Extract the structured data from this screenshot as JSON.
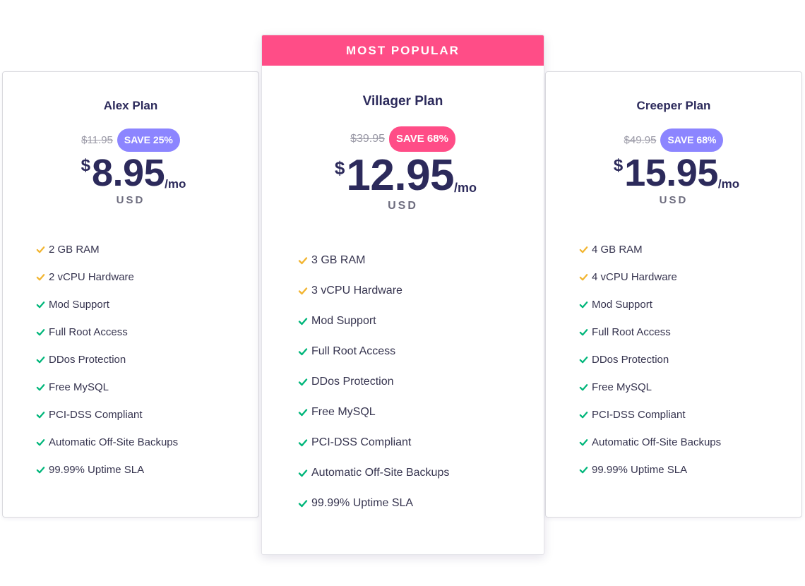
{
  "colors": {
    "ribbon": "#ff4d87",
    "save_purple": "#8c85ff",
    "save_pink": "#ff4d87",
    "check_gold": "#f2b531",
    "check_green": "#00b67a",
    "heading": "#2c2a5b"
  },
  "featured_ribbon": "MOST POPULAR",
  "plans": [
    {
      "name": "Alex Plan",
      "old_price": "$11.95",
      "save": "SAVE 25%",
      "currency_symbol": "$",
      "amount": "8.95",
      "per": "/mo",
      "currency": "USD",
      "features": [
        {
          "text": "2 GB RAM",
          "icon": "check-gold-icon"
        },
        {
          "text": "2 vCPU Hardware",
          "icon": "check-gold-icon"
        },
        {
          "text": "Mod Support",
          "icon": "check-green-icon"
        },
        {
          "text": "Full Root Access",
          "icon": "check-green-icon"
        },
        {
          "text": "DDos Protection",
          "icon": "check-green-icon"
        },
        {
          "text": "Free MySQL",
          "icon": "check-green-icon"
        },
        {
          "text": "PCI-DSS Compliant",
          "icon": "check-green-icon"
        },
        {
          "text": "Automatic Off-Site Backups",
          "icon": "check-green-icon"
        },
        {
          "text": "99.99% Uptime SLA",
          "icon": "check-green-icon"
        }
      ]
    },
    {
      "name": "Villager Plan",
      "old_price": "$39.95",
      "save": "SAVE 68%",
      "currency_symbol": "$",
      "amount": "12.95",
      "per": "/mo",
      "currency": "USD",
      "features": [
        {
          "text": "3 GB RAM",
          "icon": "check-gold-icon"
        },
        {
          "text": "3 vCPU Hardware",
          "icon": "check-gold-icon"
        },
        {
          "text": "Mod Support",
          "icon": "check-green-icon"
        },
        {
          "text": "Full Root Access",
          "icon": "check-green-icon"
        },
        {
          "text": "DDos Protection",
          "icon": "check-green-icon"
        },
        {
          "text": "Free MySQL",
          "icon": "check-green-icon"
        },
        {
          "text": "PCI-DSS Compliant",
          "icon": "check-green-icon"
        },
        {
          "text": "Automatic Off-Site Backups",
          "icon": "check-green-icon"
        },
        {
          "text": "99.99% Uptime SLA",
          "icon": "check-green-icon"
        }
      ]
    },
    {
      "name": "Creeper Plan",
      "old_price": "$49.95",
      "save": "SAVE 68%",
      "currency_symbol": "$",
      "amount": "15.95",
      "per": "/mo",
      "currency": "USD",
      "features": [
        {
          "text": "4 GB RAM",
          "icon": "check-gold-icon"
        },
        {
          "text": "4 vCPU Hardware",
          "icon": "check-gold-icon"
        },
        {
          "text": "Mod Support",
          "icon": "check-green-icon"
        },
        {
          "text": "Full Root Access",
          "icon": "check-green-icon"
        },
        {
          "text": "DDos Protection",
          "icon": "check-green-icon"
        },
        {
          "text": "Free MySQL",
          "icon": "check-green-icon"
        },
        {
          "text": "PCI-DSS Compliant",
          "icon": "check-green-icon"
        },
        {
          "text": "Automatic Off-Site Backups",
          "icon": "check-green-icon"
        },
        {
          "text": "99.99% Uptime SLA",
          "icon": "check-green-icon"
        }
      ]
    }
  ]
}
